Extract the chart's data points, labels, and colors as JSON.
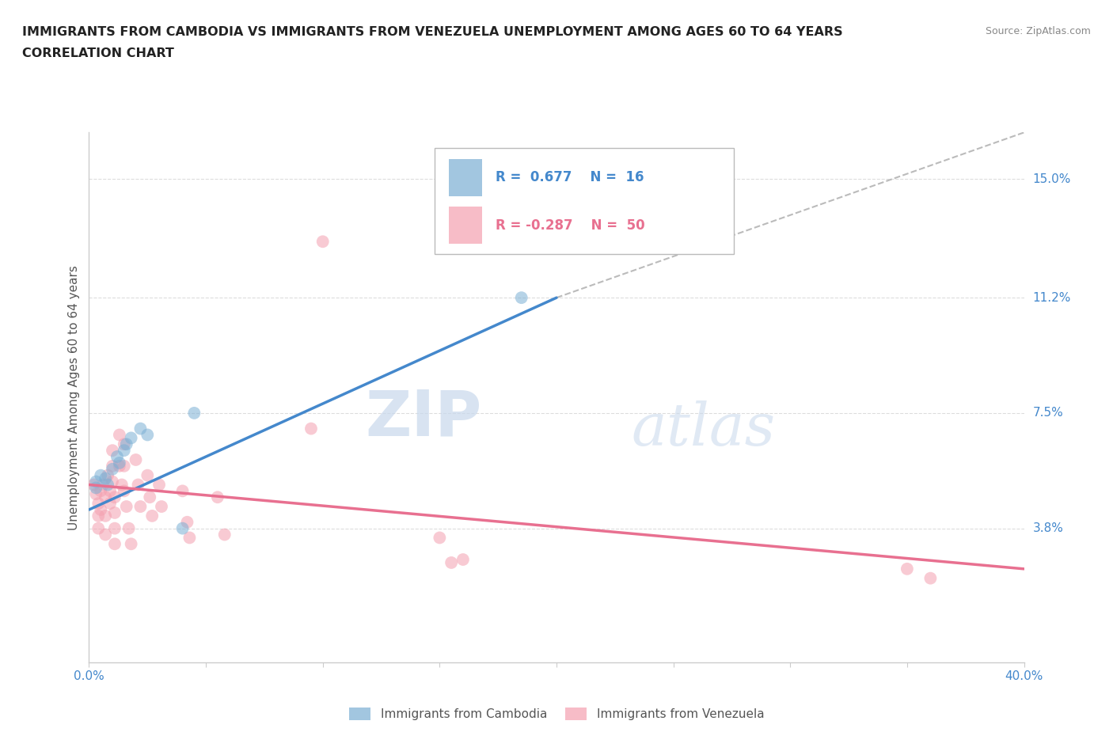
{
  "title_line1": "IMMIGRANTS FROM CAMBODIA VS IMMIGRANTS FROM VENEZUELA UNEMPLOYMENT AMONG AGES 60 TO 64 YEARS",
  "title_line2": "CORRELATION CHART",
  "source_text": "Source: ZipAtlas.com",
  "ylabel": "Unemployment Among Ages 60 to 64 years",
  "xlim": [
    0.0,
    0.4
  ],
  "ylim": [
    -0.005,
    0.165
  ],
  "xticks": [
    0.0,
    0.05,
    0.1,
    0.15,
    0.2,
    0.25,
    0.3,
    0.35,
    0.4
  ],
  "xticklabels_show": [
    "0.0%",
    "40.0%"
  ],
  "ytick_positions": [
    0.038,
    0.075,
    0.112,
    0.15
  ],
  "yticklabels": [
    "3.8%",
    "7.5%",
    "11.2%",
    "15.0%"
  ],
  "cambodia_color": "#7BAFD4",
  "venezuela_color": "#F4A0B0",
  "cambodia_line_color": "#4488CC",
  "venezuela_line_color": "#E87090",
  "cambodia_R": 0.677,
  "cambodia_N": 16,
  "venezuela_R": -0.287,
  "venezuela_N": 50,
  "watermark_zip": "ZIP",
  "watermark_atlas": "atlas",
  "cambodia_scatter": [
    [
      0.003,
      0.051
    ],
    [
      0.003,
      0.053
    ],
    [
      0.005,
      0.055
    ],
    [
      0.007,
      0.054
    ],
    [
      0.008,
      0.052
    ],
    [
      0.01,
      0.057
    ],
    [
      0.012,
      0.061
    ],
    [
      0.013,
      0.059
    ],
    [
      0.015,
      0.063
    ],
    [
      0.016,
      0.065
    ],
    [
      0.018,
      0.067
    ],
    [
      0.022,
      0.07
    ],
    [
      0.025,
      0.068
    ],
    [
      0.045,
      0.075
    ],
    [
      0.185,
      0.112
    ],
    [
      0.04,
      0.038
    ]
  ],
  "venezuela_scatter": [
    [
      0.002,
      0.052
    ],
    [
      0.003,
      0.049
    ],
    [
      0.004,
      0.046
    ],
    [
      0.004,
      0.042
    ],
    [
      0.004,
      0.038
    ],
    [
      0.005,
      0.05
    ],
    [
      0.005,
      0.044
    ],
    [
      0.006,
      0.052
    ],
    [
      0.007,
      0.048
    ],
    [
      0.007,
      0.042
    ],
    [
      0.007,
      0.036
    ],
    [
      0.008,
      0.055
    ],
    [
      0.009,
      0.05
    ],
    [
      0.009,
      0.046
    ],
    [
      0.01,
      0.063
    ],
    [
      0.01,
      0.058
    ],
    [
      0.01,
      0.053
    ],
    [
      0.011,
      0.048
    ],
    [
      0.011,
      0.043
    ],
    [
      0.011,
      0.038
    ],
    [
      0.011,
      0.033
    ],
    [
      0.013,
      0.068
    ],
    [
      0.013,
      0.058
    ],
    [
      0.014,
      0.052
    ],
    [
      0.015,
      0.065
    ],
    [
      0.015,
      0.058
    ],
    [
      0.015,
      0.05
    ],
    [
      0.016,
      0.045
    ],
    [
      0.017,
      0.038
    ],
    [
      0.018,
      0.033
    ],
    [
      0.02,
      0.06
    ],
    [
      0.021,
      0.052
    ],
    [
      0.022,
      0.045
    ],
    [
      0.025,
      0.055
    ],
    [
      0.026,
      0.048
    ],
    [
      0.027,
      0.042
    ],
    [
      0.03,
      0.052
    ],
    [
      0.031,
      0.045
    ],
    [
      0.04,
      0.05
    ],
    [
      0.042,
      0.04
    ],
    [
      0.043,
      0.035
    ],
    [
      0.055,
      0.048
    ],
    [
      0.058,
      0.036
    ],
    [
      0.095,
      0.07
    ],
    [
      0.1,
      0.13
    ],
    [
      0.15,
      0.035
    ],
    [
      0.155,
      0.027
    ],
    [
      0.16,
      0.028
    ],
    [
      0.35,
      0.025
    ],
    [
      0.36,
      0.022
    ]
  ],
  "cam_line_x": [
    0.0,
    0.2
  ],
  "cam_line_y": [
    0.044,
    0.112
  ],
  "ven_line_x": [
    0.0,
    0.4
  ],
  "ven_line_y": [
    0.052,
    0.025
  ],
  "dash_line_x": [
    0.2,
    0.4
  ],
  "dash_line_y": [
    0.112,
    0.165
  ],
  "background_color": "#FFFFFF",
  "grid_color": "#DDDDDD",
  "axis_color": "#CCCCCC",
  "title_color": "#222222",
  "label_color": "#555555",
  "tick_color": "#4488CC",
  "source_color": "#888888"
}
